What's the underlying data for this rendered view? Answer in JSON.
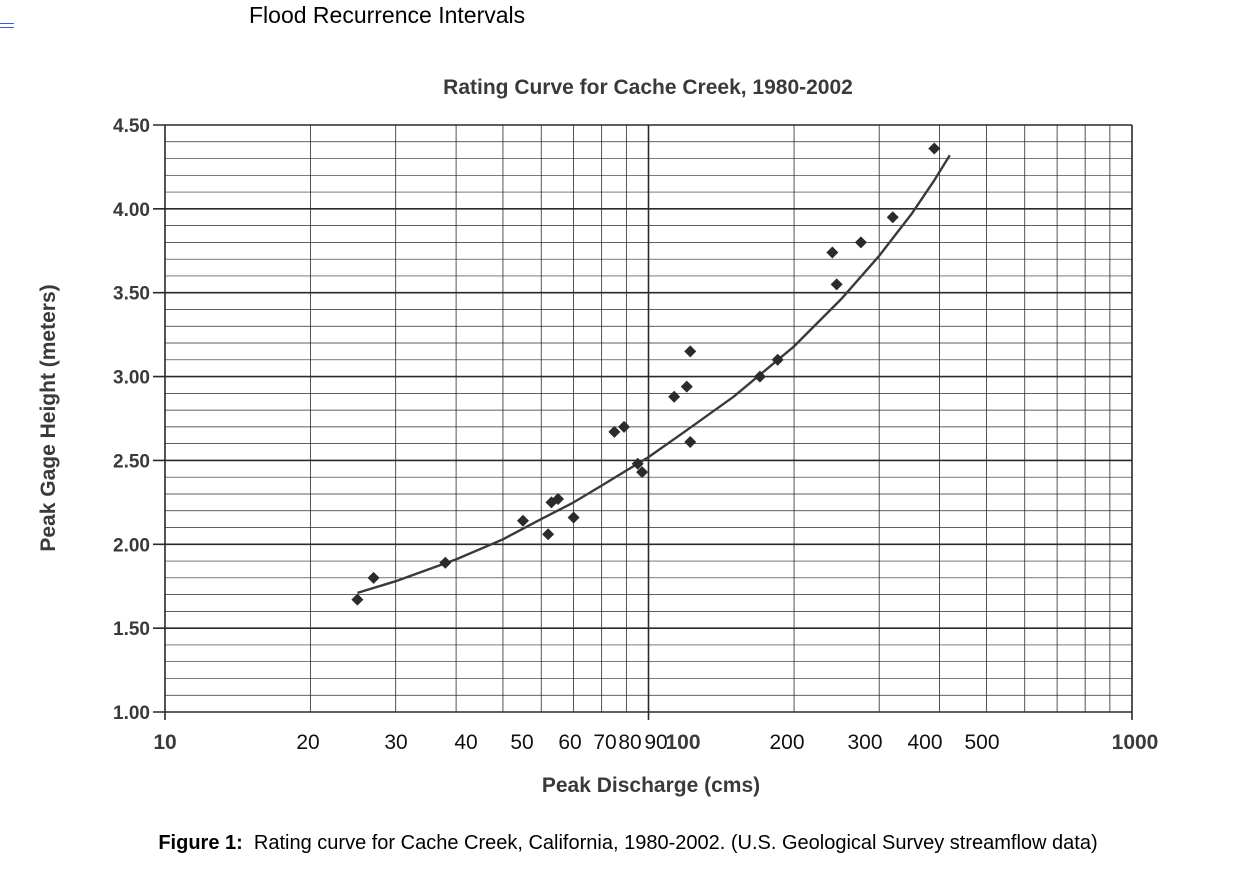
{
  "page": {
    "title": "Flood Recurrence Intervals",
    "caption_label": "Figure 1:",
    "caption_text": "Rating curve for Cache Creek, California, 1980-2002. (U.S. Geological Survey streamflow data)"
  },
  "chart_data": {
    "type": "scatter",
    "title": "Rating Curve for Cache Creek, 1980-2002",
    "xlabel": "Peak Discharge (cms)",
    "ylabel": "Peak Gage Height (meters)",
    "x_scale": "log",
    "xlim": [
      10,
      1000
    ],
    "ylim": [
      1.0,
      4.5
    ],
    "grid": true,
    "y_ticks": [
      "1.00",
      "1.50",
      "2.00",
      "2.50",
      "3.00",
      "3.50",
      "4.00",
      "4.50"
    ],
    "x_ticks": [
      {
        "value": 10,
        "label": "10"
      },
      {
        "value": 20,
        "label": "20"
      },
      {
        "value": 30,
        "label": "30"
      },
      {
        "value": 40,
        "label": "40"
      },
      {
        "value": 50,
        "label": "50"
      },
      {
        "value": 60,
        "label": "60"
      },
      {
        "value": 70,
        "label": "70"
      },
      {
        "value": 80,
        "label": "80"
      },
      {
        "value": 90,
        "label": "90"
      },
      {
        "value": 100,
        "label": "100"
      },
      {
        "value": 200,
        "label": "200"
      },
      {
        "value": 300,
        "label": "300"
      },
      {
        "value": 400,
        "label": "400"
      },
      {
        "value": 500,
        "label": "500"
      },
      {
        "value": 1000,
        "label": "1000"
      }
    ],
    "points": [
      [
        25,
        1.67
      ],
      [
        27,
        1.8
      ],
      [
        38,
        1.89
      ],
      [
        55,
        2.14
      ],
      [
        62,
        2.06
      ],
      [
        63,
        2.25
      ],
      [
        65,
        2.27
      ],
      [
        70,
        2.16
      ],
      [
        85,
        2.67
      ],
      [
        89,
        2.7
      ],
      [
        95,
        2.48
      ],
      [
        97,
        2.43
      ],
      [
        113,
        2.88
      ],
      [
        120,
        2.94
      ],
      [
        122,
        3.15
      ],
      [
        122,
        2.61
      ],
      [
        170,
        3.0
      ],
      [
        185,
        3.1
      ],
      [
        240,
        3.74
      ],
      [
        245,
        3.55
      ],
      [
        275,
        3.8
      ],
      [
        320,
        3.95
      ],
      [
        390,
        4.36
      ]
    ],
    "fit_curve": [
      [
        25,
        1.71
      ],
      [
        30,
        1.78
      ],
      [
        40,
        1.91
      ],
      [
        50,
        2.03
      ],
      [
        60,
        2.15
      ],
      [
        70,
        2.25
      ],
      [
        80,
        2.35
      ],
      [
        90,
        2.44
      ],
      [
        100,
        2.52
      ],
      [
        120,
        2.68
      ],
      [
        150,
        2.88
      ],
      [
        200,
        3.18
      ],
      [
        250,
        3.46
      ],
      [
        300,
        3.72
      ],
      [
        350,
        3.97
      ],
      [
        390,
        4.17
      ],
      [
        420,
        4.32
      ]
    ],
    "colors": {
      "marker": "#2b2b2b",
      "curve": "#3a3a3a",
      "grid": "#2a2a2a"
    }
  }
}
